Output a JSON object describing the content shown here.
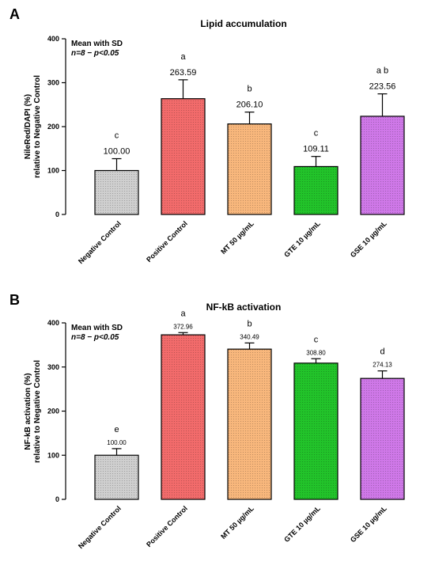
{
  "chart_data": [
    {
      "panel": "A",
      "type": "bar",
      "title": "Lipid accumulation",
      "ylabel": [
        "NileRed/DAPI (%)",
        "relative to Negative Control"
      ],
      "ylim": [
        0,
        400
      ],
      "yticks": [
        0,
        100,
        200,
        300,
        400
      ],
      "notes": [
        "Mean with SD",
        "n=8 − p<0.05"
      ],
      "categories": [
        "Negative Control",
        "Positive Control",
        "MT 50 µg/mL",
        "GTE 10 µg/mL",
        "GSE 10 µg/mL"
      ],
      "values": [
        100.0,
        263.59,
        206.1,
        109.11,
        223.56
      ],
      "value_labels": [
        "100.00",
        "263.59",
        "206.10",
        "109.11",
        "223.56"
      ],
      "sd": [
        27,
        43,
        27,
        23,
        51
      ],
      "letters": [
        "c",
        "a",
        "b",
        "c",
        "a b"
      ],
      "colors": [
        "#cfcfcf",
        "#f26b6b",
        "#f8b77c",
        "#22c32a",
        "#cf78e8"
      ]
    },
    {
      "panel": "B",
      "type": "bar",
      "title": "NF-kB activation",
      "ylabel": [
        "NF-kB activation (%)",
        "relative to Negative Control"
      ],
      "ylim": [
        0,
        400
      ],
      "yticks": [
        0,
        100,
        200,
        300,
        400
      ],
      "notes": [
        "Mean with SD",
        "n=8 − p<0.05"
      ],
      "categories": [
        "Negative Control",
        "Positive Control",
        "MT 50 µg/mL",
        "GTE 10 µg/mL",
        "GSE 10 µg/mL"
      ],
      "values": [
        100.0,
        372.96,
        340.49,
        308.8,
        274.13
      ],
      "value_labels": [
        "100.00",
        "372.96",
        "340.49",
        "308.80",
        "274.13"
      ],
      "sd": [
        15,
        5,
        14,
        10,
        17
      ],
      "letters": [
        "e",
        "a",
        "b",
        "c",
        "d"
      ],
      "colors": [
        "#cfcfcf",
        "#f26b6b",
        "#f8b77c",
        "#22c32a",
        "#cf78e8"
      ]
    }
  ]
}
